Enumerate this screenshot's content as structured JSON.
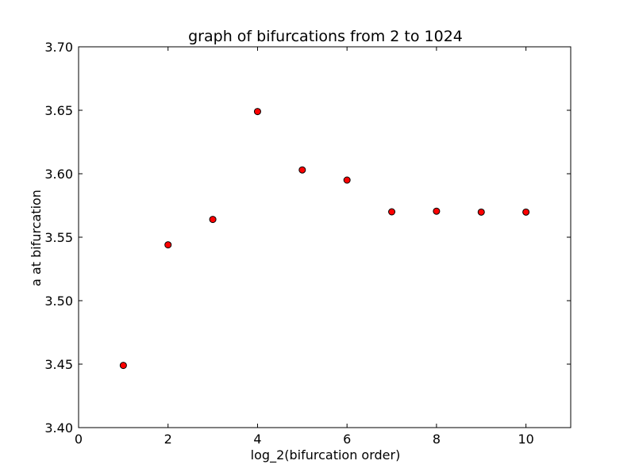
{
  "chart_data": {
    "type": "scatter",
    "title": "graph of bifurcations from 2 to 1024",
    "xlabel": "log_2(bifurcation order)",
    "ylabel": "a at bifurcation",
    "xlim": [
      0,
      11
    ],
    "ylim": [
      3.4,
      3.7
    ],
    "x_ticks": [
      0,
      2,
      4,
      6,
      8,
      10
    ],
    "x_tick_labels": [
      "0",
      "2",
      "4",
      "6",
      "8",
      "10"
    ],
    "y_ticks": [
      3.4,
      3.45,
      3.5,
      3.55,
      3.6,
      3.65,
      3.7
    ],
    "y_tick_labels": [
      "3.40",
      "3.45",
      "3.50",
      "3.55",
      "3.60",
      "3.65",
      "3.70"
    ],
    "grid": false,
    "legend": "none",
    "marker_color": "#ff0000",
    "marker_edge_color": "#000000",
    "series": [
      {
        "x": [
          1,
          2,
          3,
          4,
          5,
          6,
          7,
          8,
          9,
          10
        ],
        "y": [
          3.449,
          3.544,
          3.564,
          3.649,
          3.603,
          3.595,
          3.57,
          3.5705,
          3.5698,
          3.5698
        ]
      }
    ]
  }
}
